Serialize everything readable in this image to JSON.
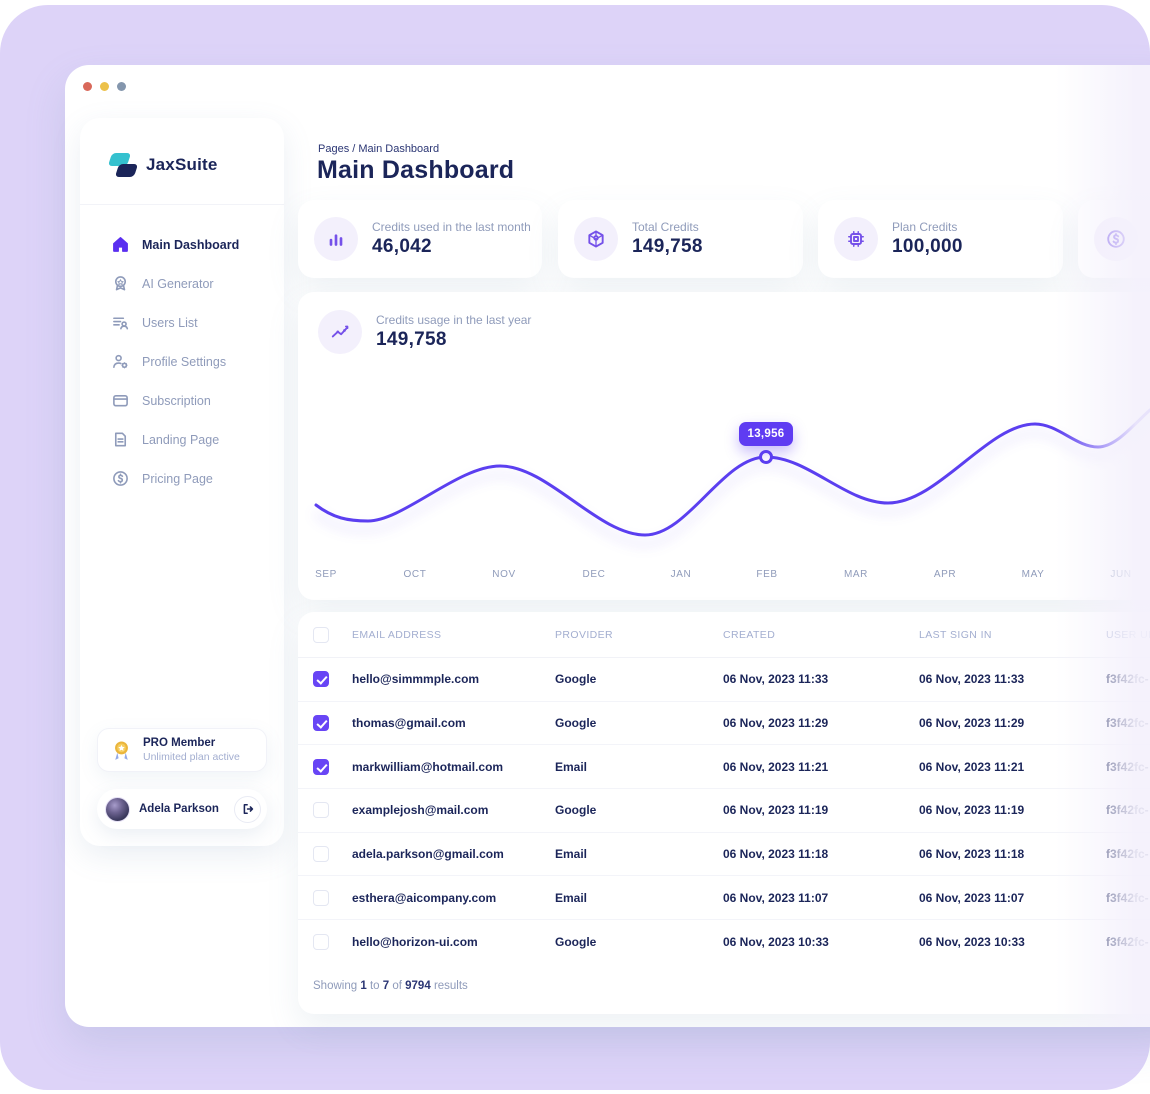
{
  "colors": {
    "accent_line": "#5b3ff0",
    "accent_icon": "#7551e9",
    "checkbox": "#6845f5",
    "navy": "#1b2559",
    "label_gray": "#8f9bba",
    "lavender_bg": "#ddd3f8",
    "traffic_red": "#d9695a",
    "traffic_yellow": "#ecc14a",
    "traffic_gray": "#8496ad"
  },
  "brand": {
    "name": "JaxSuite"
  },
  "sidebar": {
    "items": [
      {
        "label": "Main Dashboard",
        "icon": "home-icon",
        "active": true
      },
      {
        "label": "AI Generator",
        "icon": "badge-icon",
        "active": false
      },
      {
        "label": "Users List",
        "icon": "users-list-icon",
        "active": false
      },
      {
        "label": "Profile Settings",
        "icon": "user-gear-icon",
        "active": false
      },
      {
        "label": "Subscription",
        "icon": "credit-card-icon",
        "active": false
      },
      {
        "label": "Landing Page",
        "icon": "document-icon",
        "active": false
      },
      {
        "label": "Pricing Page",
        "icon": "dollar-circle-icon",
        "active": false
      }
    ],
    "pro_card": {
      "title": "PRO Member",
      "subtitle": "Unlimited plan active"
    },
    "user": {
      "name": "Adela Parkson"
    }
  },
  "header": {
    "breadcrumb": "Pages / Main Dashboard",
    "title": "Main Dashboard"
  },
  "stats": [
    {
      "label": "Credits used in the last month",
      "value": "46,042",
      "icon": "bar-chart-icon"
    },
    {
      "label": "Total Credits",
      "value": "149,758",
      "icon": "cube-icon"
    },
    {
      "label": "Plan Credits",
      "value": "100,000",
      "icon": "chip-icon"
    },
    {
      "label": "",
      "value": "",
      "icon": "dollar-circle-icon"
    }
  ],
  "chart": {
    "label": "Credits usage in the last year",
    "value": "149,758",
    "tooltip_value": "13,956",
    "months": [
      "SEP",
      "OCT",
      "NOV",
      "DEC",
      "JAN",
      "FEB",
      "MAR",
      "APR",
      "MAY",
      "JUN"
    ]
  },
  "table": {
    "columns": [
      "EMAIL ADDRESS",
      "PROVIDER",
      "CREATED",
      "LAST SIGN IN",
      "USER UID"
    ],
    "rows": [
      {
        "checked": true,
        "email": "hello@simmmple.com",
        "provider": "Google",
        "created": "06 Nov, 2023 11:33",
        "last_sign_in": "06 Nov, 2023 11:33",
        "user_uid": "f3f42fc-"
      },
      {
        "checked": true,
        "email": "thomas@gmail.com",
        "provider": "Google",
        "created": "06 Nov, 2023 11:29",
        "last_sign_in": "06 Nov, 2023 11:29",
        "user_uid": "f3f42fc-"
      },
      {
        "checked": true,
        "email": "markwilliam@hotmail.com",
        "provider": "Email",
        "created": "06 Nov, 2023 11:21",
        "last_sign_in": "06 Nov, 2023 11:21",
        "user_uid": "f3f42fc-"
      },
      {
        "checked": false,
        "email": "examplejosh@mail.com",
        "provider": "Google",
        "created": "06 Nov, 2023 11:19",
        "last_sign_in": "06 Nov, 2023 11:19",
        "user_uid": "f3f42fc-"
      },
      {
        "checked": false,
        "email": "adela.parkson@gmail.com",
        "provider": "Email",
        "created": "06 Nov, 2023 11:18",
        "last_sign_in": "06 Nov, 2023 11:18",
        "user_uid": "f3f42fc-"
      },
      {
        "checked": false,
        "email": "esthera@aicompany.com",
        "provider": "Email",
        "created": "06 Nov, 2023 11:07",
        "last_sign_in": "06 Nov, 2023 11:07",
        "user_uid": "f3f42fc-"
      },
      {
        "checked": false,
        "email": "hello@horizon-ui.com",
        "provider": "Google",
        "created": "06 Nov, 2023 10:33",
        "last_sign_in": "06 Nov, 2023 10:33",
        "user_uid": "f3f42fc-"
      }
    ],
    "footer": {
      "prefix": "Showing",
      "from": "1",
      "to_word": "to",
      "to": "7",
      "of_word": "of",
      "total": "9794",
      "suffix": "results"
    }
  }
}
